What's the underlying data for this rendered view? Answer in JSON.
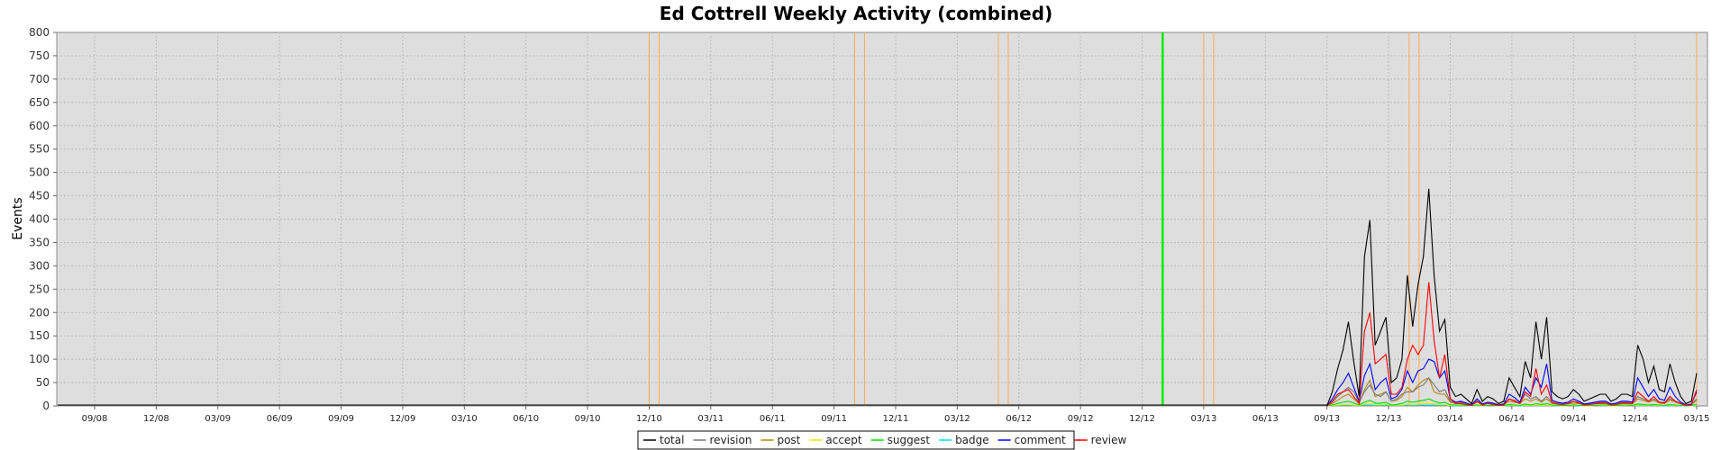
{
  "chart_data": {
    "type": "line",
    "title": "Ed Cottrell Weekly Activity (combined)",
    "xlabel": "",
    "ylabel": "Events",
    "ylim": [
      0,
      800
    ],
    "y_ticks": [
      0,
      50,
      100,
      150,
      200,
      250,
      300,
      350,
      400,
      450,
      500,
      550,
      600,
      650,
      700,
      750,
      800
    ],
    "x_ticks": [
      "09/08",
      "12/08",
      "03/09",
      "06/09",
      "09/09",
      "12/09",
      "03/10",
      "06/10",
      "09/10",
      "12/10",
      "03/11",
      "06/11",
      "09/11",
      "12/11",
      "03/12",
      "06/12",
      "09/12",
      "12/12",
      "03/13",
      "06/13",
      "09/13",
      "12/13",
      "03/14",
      "06/14",
      "09/14",
      "12/14",
      "03/15"
    ],
    "grid": true,
    "legend_position": "bottom-center",
    "background_color": "#dedede",
    "colors": {
      "total": "#000000",
      "revision": "#777777",
      "post": "#b8860b",
      "accept": "#e8e800",
      "suggest": "#00dd00",
      "badge": "#00e5e5",
      "comment": "#0000ff",
      "review": "#ff0000",
      "marker_orange": "#ffaa55",
      "marker_green": "#00ee00"
    },
    "vertical_markers": {
      "orange": [
        "12/10",
        "12/10",
        "10/11",
        "10/11",
        "05/12",
        "05/12",
        "03/13",
        "03/13",
        "01/14",
        "01/14",
        "03/15"
      ],
      "green": [
        "01/13"
      ]
    },
    "x_dates": [
      "09/13",
      "10/13",
      "10/13",
      "11/13",
      "11/13",
      "11/13",
      "11/13",
      "12/13",
      "12/13",
      "12/13",
      "12/13",
      "12/13",
      "01/14",
      "01/14",
      "01/14",
      "01/14",
      "02/14",
      "02/14",
      "02/14",
      "02/14",
      "03/14",
      "03/14",
      "03/14",
      "03/14",
      "04/14",
      "04/14",
      "04/14",
      "04/14",
      "05/14",
      "05/14",
      "05/14",
      "05/14",
      "06/14",
      "06/14",
      "06/14",
      "06/14",
      "07/14",
      "07/14",
      "07/14",
      "07/14",
      "08/14",
      "08/14",
      "08/14",
      "09/14",
      "09/14",
      "09/14",
      "09/14",
      "10/14",
      "10/14",
      "10/14",
      "10/14",
      "11/14",
      "11/14",
      "11/14",
      "11/14",
      "12/14",
      "12/14",
      "12/14",
      "12/14",
      "01/15",
      "01/15",
      "01/15",
      "01/15",
      "02/15",
      "02/15",
      "02/15",
      "02/15",
      "03/15",
      "03/15",
      "03/15"
    ],
    "series": [
      {
        "name": "total",
        "values": [
          0,
          30,
          80,
          120,
          180,
          95,
          20,
          320,
          398,
          130,
          160,
          190,
          50,
          60,
          100,
          280,
          170,
          260,
          320,
          465,
          280,
          160,
          185,
          40,
          20,
          25,
          15,
          5,
          35,
          10,
          20,
          15,
          5,
          10,
          60,
          40,
          20,
          95,
          60,
          180,
          100,
          190,
          30,
          20,
          15,
          20,
          35,
          25,
          10,
          15,
          20,
          25,
          25,
          10,
          15,
          25,
          25,
          20,
          130,
          100,
          50,
          85,
          35,
          30,
          90,
          50,
          20,
          5,
          10,
          70
        ]
      },
      {
        "name": "revision",
        "values": [
          0,
          8,
          20,
          30,
          40,
          30,
          8,
          30,
          45,
          25,
          20,
          30,
          10,
          15,
          25,
          30,
          30,
          40,
          45,
          60,
          45,
          30,
          35,
          10,
          8,
          8,
          6,
          3,
          10,
          5,
          6,
          5,
          3,
          4,
          15,
          12,
          6,
          25,
          15,
          20,
          10,
          20,
          8,
          6,
          5,
          6,
          10,
          8,
          4,
          5,
          6,
          8,
          8,
          4,
          5,
          8,
          8,
          6,
          20,
          15,
          10,
          15,
          8,
          8,
          15,
          10,
          5,
          2,
          3,
          15
        ]
      },
      {
        "name": "post",
        "values": [
          0,
          5,
          12,
          20,
          25,
          15,
          5,
          35,
          55,
          20,
          25,
          30,
          10,
          12,
          20,
          40,
          30,
          45,
          55,
          60,
          30,
          25,
          25,
          8,
          5,
          6,
          4,
          2,
          8,
          3,
          5,
          4,
          2,
          3,
          10,
          8,
          5,
          15,
          10,
          15,
          8,
          15,
          5,
          4,
          3,
          4,
          6,
          5,
          2,
          3,
          4,
          5,
          5,
          2,
          3,
          5,
          5,
          4,
          15,
          12,
          8,
          12,
          6,
          5,
          12,
          8,
          4,
          1,
          2,
          12
        ]
      },
      {
        "name": "accept",
        "values": [
          0,
          1,
          2,
          3,
          3,
          2,
          1,
          4,
          5,
          3,
          3,
          4,
          1,
          2,
          2,
          4,
          3,
          4,
          5,
          6,
          4,
          3,
          3,
          1,
          1,
          1,
          1,
          0,
          1,
          0,
          1,
          1,
          0,
          0,
          2,
          1,
          1,
          2,
          1,
          2,
          1,
          2,
          1,
          1,
          0,
          1,
          1,
          1,
          0,
          0,
          1,
          1,
          1,
          0,
          0,
          1,
          1,
          1,
          2,
          2,
          1,
          2,
          1,
          1,
          2,
          1,
          1,
          0,
          0,
          2
        ]
      },
      {
        "name": "suggest",
        "values": [
          0,
          2,
          5,
          8,
          10,
          6,
          2,
          8,
          12,
          6,
          6,
          8,
          2,
          3,
          5,
          10,
          8,
          10,
          12,
          15,
          10,
          6,
          8,
          2,
          2,
          2,
          1,
          1,
          2,
          1,
          1,
          1,
          1,
          1,
          3,
          2,
          1,
          4,
          2,
          5,
          3,
          5,
          2,
          1,
          1,
          1,
          2,
          1,
          1,
          1,
          1,
          2,
          2,
          1,
          1,
          2,
          2,
          1,
          4,
          3,
          2,
          3,
          2,
          1,
          3,
          2,
          1,
          0,
          1,
          3
        ]
      },
      {
        "name": "badge",
        "values": [
          0,
          1,
          1,
          2,
          2,
          1,
          1,
          2,
          2,
          1,
          1,
          2,
          1,
          1,
          1,
          2,
          1,
          2,
          2,
          2,
          2,
          1,
          2,
          1,
          0,
          1,
          0,
          0,
          1,
          0,
          1,
          1,
          0,
          0,
          1,
          1,
          0,
          1,
          1,
          1,
          1,
          1,
          1,
          0,
          0,
          1,
          1,
          0,
          0,
          0,
          1,
          1,
          1,
          0,
          0,
          1,
          1,
          1,
          1,
          1,
          1,
          1,
          1,
          0,
          1,
          1,
          0,
          0,
          0,
          1
        ]
      },
      {
        "name": "comment",
        "values": [
          0,
          15,
          35,
          50,
          70,
          40,
          10,
          65,
          90,
          35,
          50,
          60,
          15,
          20,
          35,
          75,
          50,
          75,
          80,
          100,
          95,
          60,
          75,
          15,
          8,
          10,
          6,
          2,
          15,
          4,
          8,
          6,
          2,
          4,
          25,
          18,
          8,
          40,
          25,
          60,
          40,
          90,
          12,
          8,
          6,
          8,
          15,
          10,
          4,
          6,
          8,
          10,
          10,
          4,
          6,
          10,
          10,
          8,
          60,
          40,
          20,
          35,
          15,
          12,
          40,
          20,
          8,
          2,
          4,
          30
        ]
      },
      {
        "name": "review",
        "values": [
          0,
          10,
          25,
          30,
          35,
          20,
          5,
          160,
          200,
          90,
          100,
          110,
          25,
          25,
          40,
          100,
          130,
          110,
          130,
          265,
          140,
          60,
          110,
          15,
          5,
          5,
          3,
          1,
          10,
          2,
          5,
          3,
          1,
          2,
          15,
          10,
          5,
          30,
          20,
          80,
          25,
          45,
          8,
          4,
          3,
          5,
          10,
          6,
          2,
          3,
          5,
          6,
          6,
          2,
          3,
          6,
          6,
          5,
          30,
          20,
          10,
          20,
          8,
          6,
          20,
          10,
          5,
          1,
          2,
          35
        ]
      }
    ]
  }
}
